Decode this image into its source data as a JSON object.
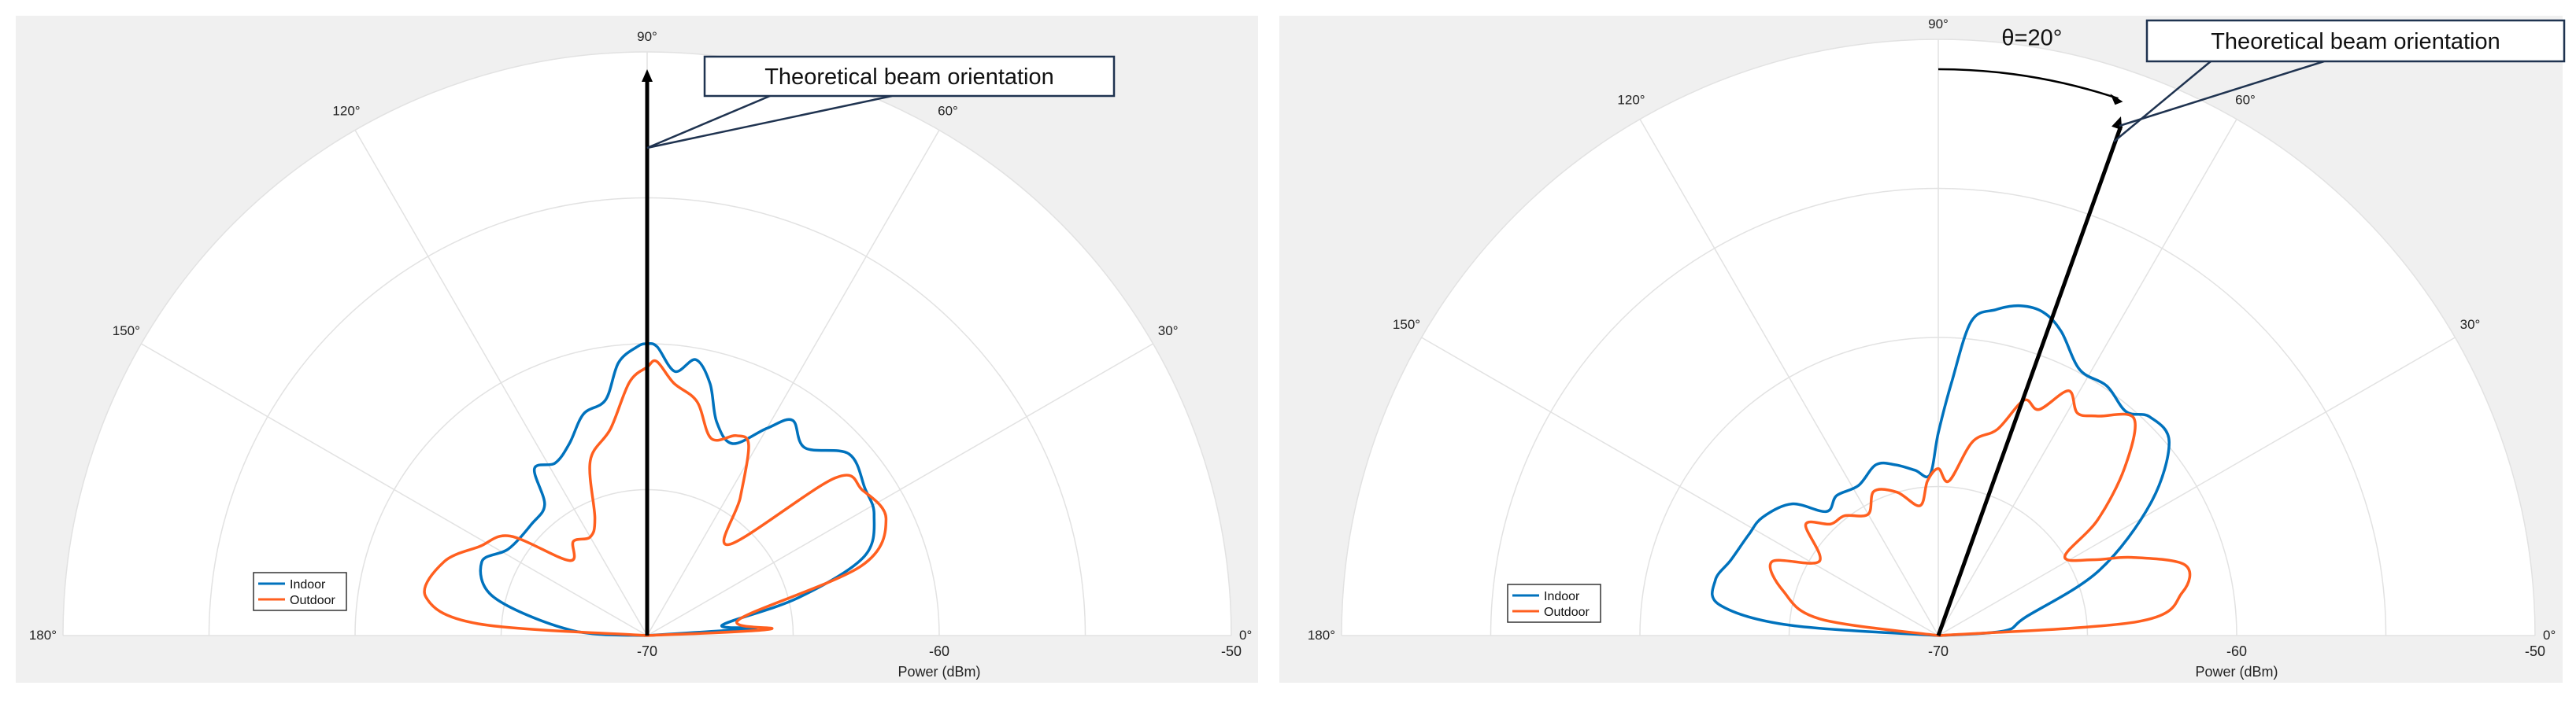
{
  "chart_data": [
    {
      "type": "polar-line",
      "xlabel": "Power (dBm)",
      "theta_range_deg": [
        0,
        180
      ],
      "r_range_dBm": [
        -70,
        -50
      ],
      "angle_ticks": [
        "0°",
        "30°",
        "60°",
        "90°",
        "120°",
        "150°",
        "180°"
      ],
      "radial_ticks": [
        "-70",
        "-60",
        "-50"
      ],
      "grid": true,
      "legend_position": "bottom-left",
      "annotation": "Theoretical beam orientation",
      "beam_angle_deg": 90,
      "colors": {
        "Indoor": "#0072BD",
        "Outdoor": "#FF5F1F"
      },
      "series": [
        {
          "name": "Indoor",
          "points": [
            [
              0,
              -70
            ],
            [
              4,
              -66.3
            ],
            [
              8,
              -67.4
            ],
            [
              14,
              -64.7
            ],
            [
              20,
              -62.1
            ],
            [
              28,
              -61.2
            ],
            [
              34,
              -61.0
            ],
            [
              42,
              -60.7
            ],
            [
              50,
              -61.6
            ],
            [
              56,
              -61.1
            ],
            [
              60,
              -61.8
            ],
            [
              66,
              -62.8
            ],
            [
              72,
              -62.3
            ],
            [
              76,
              -61.1
            ],
            [
              80,
              -60.4
            ],
            [
              84,
              -60.9
            ],
            [
              88,
              -60.1
            ],
            [
              90,
              -60.0
            ],
            [
              92,
              -60.1
            ],
            [
              96,
              -60.6
            ],
            [
              100,
              -61.8
            ],
            [
              106,
              -62.1
            ],
            [
              112,
              -62.9
            ],
            [
              118,
              -63.3
            ],
            [
              124,
              -63.1
            ],
            [
              128,
              -64.3
            ],
            [
              136,
              -64.5
            ],
            [
              148,
              -64.4
            ],
            [
              156,
              -63.8
            ],
            [
              166,
              -64.6
            ],
            [
              176,
              -67.4
            ],
            [
              180,
              -70
            ]
          ]
        },
        {
          "name": "Outdoor",
          "points": [
            [
              0,
              -70
            ],
            [
              3,
              -65.8
            ],
            [
              10,
              -66.8
            ],
            [
              18,
              -62.3
            ],
            [
              26,
              -60.9
            ],
            [
              34,
              -61.1
            ],
            [
              40,
              -61.6
            ],
            [
              48,
              -65.8
            ],
            [
              56,
              -64.3
            ],
            [
              62,
              -62.6
            ],
            [
              66,
              -62.5
            ],
            [
              72,
              -62.9
            ],
            [
              78,
              -61.8
            ],
            [
              84,
              -61.3
            ],
            [
              88,
              -60.6
            ],
            [
              90,
              -60.8
            ],
            [
              94,
              -61.3
            ],
            [
              100,
              -62.8
            ],
            [
              108,
              -63.7
            ],
            [
              114,
              -65.6
            ],
            [
              120,
              -66.1
            ],
            [
              128,
              -65.9
            ],
            [
              136,
              -66.3
            ],
            [
              144,
              -64.2
            ],
            [
              152,
              -63.5
            ],
            [
              160,
              -62.6
            ],
            [
              170,
              -62.3
            ],
            [
              176,
              -64.2
            ],
            [
              180,
              -70
            ]
          ]
        }
      ]
    },
    {
      "type": "polar-line",
      "xlabel": "Power (dBm)",
      "theta_range_deg": [
        0,
        180
      ],
      "r_range_dBm": [
        -70,
        -50
      ],
      "angle_ticks": [
        "0°",
        "30°",
        "60°",
        "90°",
        "120°",
        "150°",
        "180°"
      ],
      "radial_ticks": [
        "-70",
        "-60",
        "-50"
      ],
      "grid": true,
      "legend_position": "bottom-left",
      "annotation": "Theoretical beam orientation",
      "angle_label": "θ=20°",
      "beam_angle_deg": 70,
      "colors": {
        "Indoor": "#0072BD",
        "Outdoor": "#FF5F1F"
      },
      "series": [
        {
          "name": "Indoor",
          "points": [
            [
              0,
              -70
            ],
            [
              4,
              -67.8
            ],
            [
              12,
              -67.0
            ],
            [
              22,
              -64.2
            ],
            [
              32,
              -61.6
            ],
            [
              40,
              -59.9
            ],
            [
              46,
              -59.8
            ],
            [
              50,
              -60.2
            ],
            [
              56,
              -59.9
            ],
            [
              62,
              -59.9
            ],
            [
              68,
              -59.0
            ],
            [
              72,
              -58.6
            ],
            [
              76,
              -58.6
            ],
            [
              80,
              -58.9
            ],
            [
              84,
              -59.4
            ],
            [
              87,
              -61.5
            ],
            [
              90,
              -63.2
            ],
            [
              93,
              -64.6
            ],
            [
              98,
              -64.4
            ],
            [
              104,
              -64.1
            ],
            [
              110,
              -63.9
            ],
            [
              118,
              -64.3
            ],
            [
              126,
              -64.2
            ],
            [
              132,
              -64.4
            ],
            [
              138,
              -63.4
            ],
            [
              146,
              -62.9
            ],
            [
              152,
              -62.8
            ],
            [
              160,
              -62.6
            ],
            [
              166,
              -62.3
            ],
            [
              172,
              -62.6
            ],
            [
              176,
              -65.0
            ],
            [
              180,
              -70
            ]
          ]
        },
        {
          "name": "Outdoor",
          "points": [
            [
              0,
              -70
            ],
            [
              4,
              -63.3
            ],
            [
              10,
              -61.7
            ],
            [
              16,
              -61.4
            ],
            [
              22,
              -63.0
            ],
            [
              26,
              -64.2
            ],
            [
              32,
              -65.0
            ],
            [
              36,
              -63.4
            ],
            [
              42,
              -61.6
            ],
            [
              48,
              -60.2
            ],
            [
              54,
              -60.9
            ],
            [
              58,
              -61.2
            ],
            [
              62,
              -60.7
            ],
            [
              66,
              -61.7
            ],
            [
              70,
              -61.6
            ],
            [
              74,
              -62.8
            ],
            [
              80,
              -63.4
            ],
            [
              86,
              -64.8
            ],
            [
              90,
              -64.4
            ],
            [
              94,
              -64.8
            ],
            [
              98,
              -65.6
            ],
            [
              106,
              -65.0
            ],
            [
              114,
              -64.7
            ],
            [
              120,
              -65.3
            ],
            [
              128,
              -64.9
            ],
            [
              134,
              -64.8
            ],
            [
              140,
              -64.2
            ],
            [
              148,
              -65.3
            ],
            [
              156,
              -63.9
            ],
            [
              164,
              -64.6
            ],
            [
              172,
              -66.0
            ],
            [
              180,
              -70
            ]
          ]
        }
      ]
    }
  ]
}
